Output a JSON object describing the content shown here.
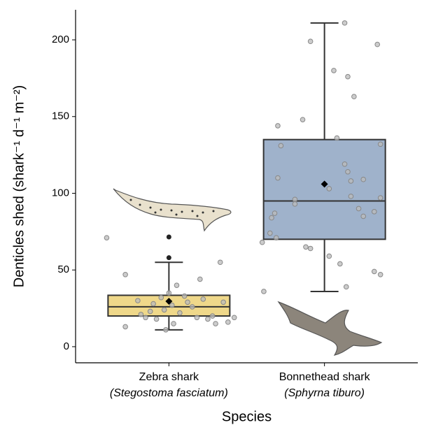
{
  "chart_data": {
    "type": "box",
    "ylabel": "Denticles shed (shark⁻¹ d⁻¹ m⁻²)",
    "xlabel": "Species",
    "categories": [
      "Zebra shark",
      "Bonnethead shark"
    ],
    "category_subtitles": [
      "(Stegostoma fasciatum)",
      "(Sphyrna tiburo)"
    ],
    "colors": [
      "#efd88a",
      "#9fb2cb"
    ],
    "boxes": [
      {
        "low": 11,
        "q1": 20,
        "median": 26,
        "q3": 33.5,
        "high": 55,
        "mean": 29.6,
        "outliers": [
          58,
          71.5
        ]
      },
      {
        "low": 36,
        "q1": 70,
        "median": 95,
        "q3": 135,
        "high": 211,
        "mean": 106,
        "outliers": []
      }
    ],
    "points": [
      {
        "x": [
          0.6,
          0.72,
          0.72,
          0.8,
          0.82,
          0.85,
          0.88,
          0.9,
          0.92,
          0.95,
          0.97,
          0.98,
          1.0,
          1.02,
          1.03,
          1.05,
          1.07,
          1.1,
          1.12,
          1.15,
          1.18,
          1.2,
          1.22,
          1.25,
          1.28,
          1.3,
          1.33,
          1.35,
          1.38,
          1.42
        ],
        "values": [
          71,
          47,
          13,
          30,
          21,
          19,
          23,
          28,
          18,
          32,
          24,
          11,
          35,
          27,
          15,
          40,
          22,
          33,
          29,
          26,
          19,
          44,
          31,
          18,
          20,
          15,
          55,
          29,
          16,
          19
        ]
      },
      {
        "x": [
          1.6,
          1.61,
          1.65,
          1.66,
          1.68,
          1.69,
          1.7,
          1.72,
          1.7,
          1.81,
          1.81,
          1.86,
          1.91,
          1.88,
          1.91,
          2.03,
          2.06,
          2.08,
          2.1,
          2.13,
          2.14,
          2.15,
          2.17,
          2.15,
          2.19,
          2.17,
          2.25,
          2.22,
          2.25,
          2.32,
          2.32,
          2.34,
          2.36,
          2.36,
          2.36,
          2.13,
          2.03
        ],
        "values": [
          68,
          36,
          74,
          84,
          87,
          71,
          110,
          131,
          144,
          96,
          93,
          148,
          199,
          65,
          64,
          59,
          180,
          136,
          54,
          119,
          39,
          114,
          108,
          176,
          163,
          98,
          109,
          90,
          85,
          49,
          88,
          197,
          97,
          132,
          47,
          211,
          103
        ]
      }
    ],
    "xlim": [
      0.4,
      2.6
    ],
    "ylim": [
      -10.5,
      219.6
    ],
    "yticks": [
      0,
      50,
      100,
      150,
      200
    ]
  }
}
